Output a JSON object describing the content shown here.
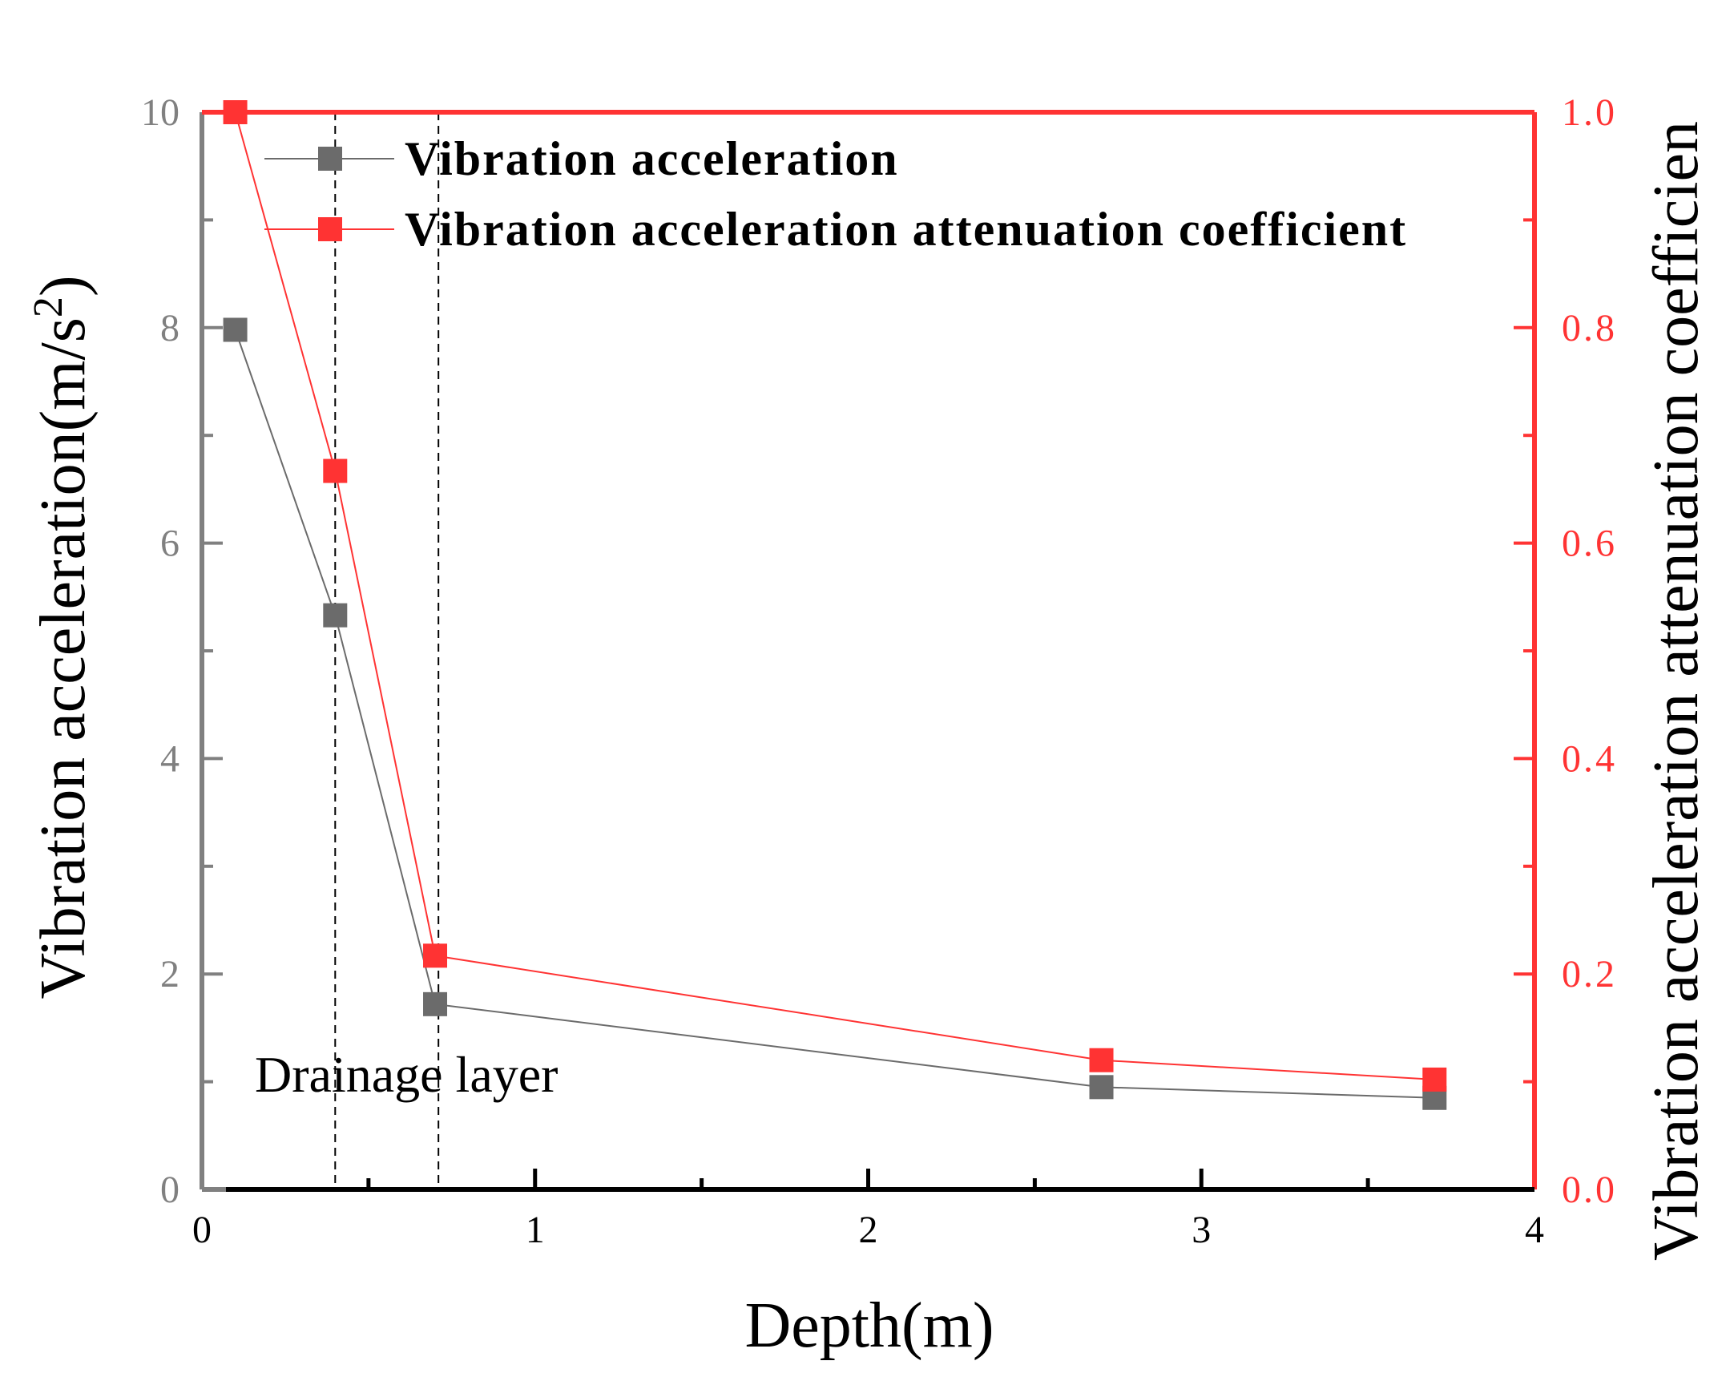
{
  "chart_data": {
    "type": "line",
    "x_axis": {
      "label": "Depth(m)",
      "range": [
        0,
        4
      ],
      "ticks": [
        0,
        1,
        2,
        3,
        4
      ],
      "minor_ticks": [
        0.5,
        1.5,
        2.5,
        3.5
      ],
      "tick_labels": [
        "0",
        "1",
        "2",
        "3",
        "4"
      ]
    },
    "y_axis_left": {
      "label": "Vibration acceleration(m/s",
      "label_superscript": "2",
      "label_close": ")",
      "range": [
        0,
        10
      ],
      "ticks": [
        0,
        2,
        4,
        6,
        8,
        10
      ],
      "minor_ticks": [
        1,
        3,
        5,
        7,
        9
      ],
      "tick_labels": [
        "0",
        "2",
        "4",
        "6",
        "8",
        "10"
      ],
      "color": "#808080"
    },
    "y_axis_right": {
      "label": "Vibration acceleration attenuation coefficien",
      "range": [
        0,
        1.0
      ],
      "ticks": [
        0,
        0.2,
        0.4,
        0.6,
        0.8,
        1.0
      ],
      "minor_ticks": [
        0.1,
        0.3,
        0.5,
        0.7,
        0.9
      ],
      "tick_labels": [
        "0.0",
        "0.2",
        "0.4",
        "0.6",
        "0.8",
        "1.0"
      ],
      "color": "#ff3333"
    },
    "series": [
      {
        "name": "Vibration acceleration",
        "axis": "left",
        "color": "#6b6b6b",
        "marker": "square",
        "x": [
          0.1,
          0.4,
          0.7,
          2.7,
          3.7
        ],
        "y": [
          7.98,
          5.33,
          1.72,
          0.95,
          0.85
        ]
      },
      {
        "name": "Vibration acceleration attenuation coefficient",
        "axis": "right",
        "color": "#ff3333",
        "marker": "square",
        "x": [
          0.1,
          0.4,
          0.7,
          2.7,
          3.7
        ],
        "y": [
          1.0,
          0.667,
          0.217,
          0.12,
          0.102
        ]
      }
    ],
    "reference_lines": {
      "style": "dashed",
      "color": "#000000",
      "x": [
        0.4,
        0.71
      ]
    },
    "annotation": "Drainage layer",
    "legend_position": "top-left",
    "grid": false
  }
}
